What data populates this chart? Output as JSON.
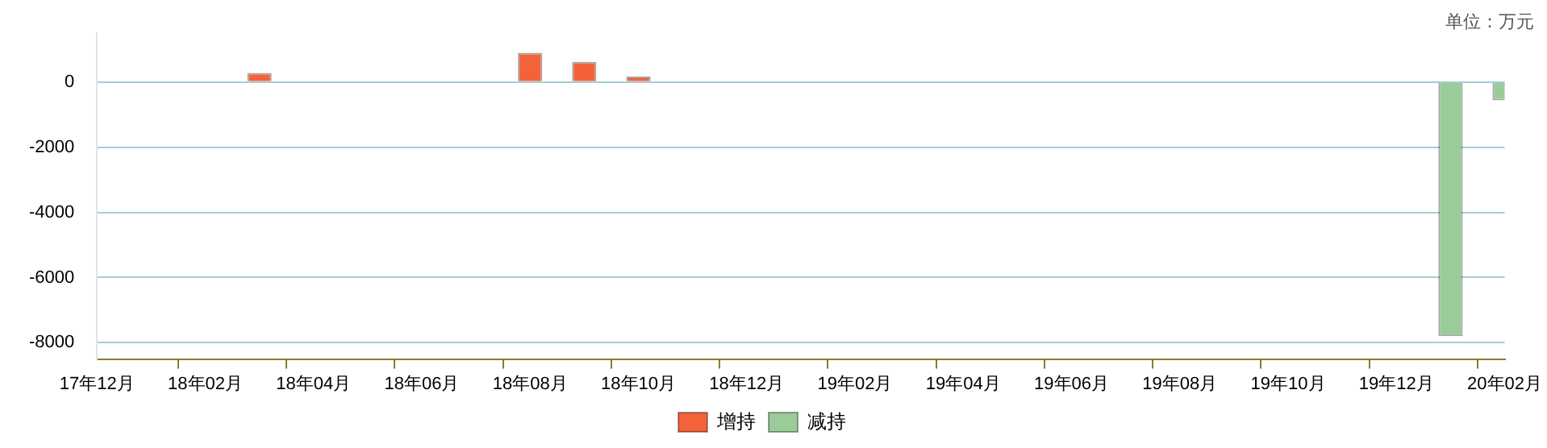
{
  "chart_data": {
    "type": "bar",
    "stacked": true,
    "categories": [
      "17年12月",
      null,
      "18年02月",
      null,
      "18年04月",
      null,
      "18年06月",
      null,
      "18年08月",
      null,
      "18年10月",
      null,
      "18年12月",
      null,
      "19年02月",
      null,
      "19年04月",
      null,
      "19年06月",
      null,
      "19年08月",
      null,
      "19年10月",
      null,
      "19年12月",
      null,
      "20年02月"
    ],
    "series": [
      {
        "name": "增持",
        "color": "#f4623a",
        "values": [
          null,
          null,
          null,
          280,
          null,
          null,
          null,
          null,
          900,
          620,
          170,
          null,
          null,
          null,
          null,
          null,
          null,
          null,
          null,
          null,
          null,
          null,
          null,
          null,
          null,
          null,
          null
        ]
      },
      {
        "name": "减持",
        "color": "#99cc99",
        "values": [
          null,
          null,
          null,
          null,
          null,
          null,
          null,
          null,
          null,
          null,
          null,
          null,
          null,
          null,
          null,
          null,
          null,
          null,
          null,
          null,
          null,
          null,
          null,
          null,
          null,
          -7800,
          -560
        ]
      }
    ],
    "ylim": [
      -8500,
      1500
    ],
    "yticks": [
      0,
      -2000,
      -4000,
      -6000,
      -8000
    ],
    "grid": "y",
    "legend": "bottom",
    "annotations": [
      "单位：万元"
    ]
  }
}
